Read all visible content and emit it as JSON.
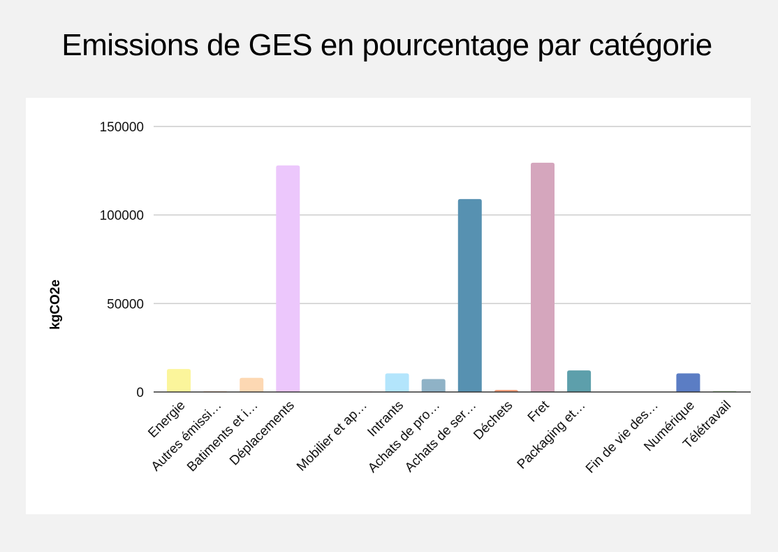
{
  "chart_data": {
    "type": "bar",
    "title": "Emissions de GES en pourcentage par catégorie",
    "xlabel": "",
    "ylabel": "kgCO2e",
    "ylim": [
      0,
      150000
    ],
    "yticks": [
      "0",
      "50000",
      "100000",
      "150000"
    ],
    "grid": true,
    "legend": "none",
    "categories": [
      "Energie",
      "Autres émissi…",
      "Batiments et i…",
      "Déplacements",
      "",
      "Mobilier et ap…",
      "Intrants",
      "Achats de pro…",
      "Achats de ser…",
      "Déchets",
      "Fret",
      "Packaging et…",
      "",
      "Fin de vie des…",
      "Numérique",
      "Télétravail"
    ],
    "values": [
      13000,
      400,
      8000,
      128000,
      0,
      300,
      10500,
      7300,
      109000,
      1200,
      129500,
      12200,
      0,
      0,
      10500,
      500
    ],
    "colors": [
      "#fbf59b",
      "#f7b98a",
      "#fdd8b3",
      "#ecc7fc",
      "#ffffff",
      "#fcd3d1",
      "#b3e5fc",
      "#8fb2c6",
      "#5791b1",
      "#f4a07d",
      "#d5a6bd",
      "#5d9fab",
      "#ffffff",
      "#ffffff",
      "#5b7dc4",
      "#93c47d"
    ]
  }
}
